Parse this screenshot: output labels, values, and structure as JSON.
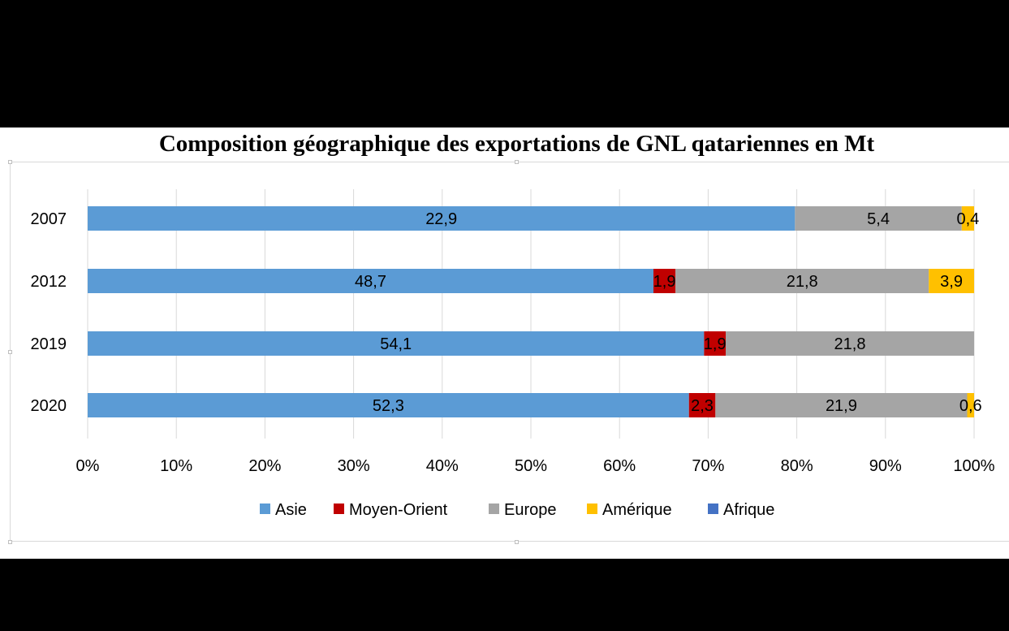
{
  "chart_data": {
    "type": "bar",
    "orientation": "horizontal",
    "stacked": "percent",
    "title": "Composition géographique des exportations de GNL qatariennes en Mt",
    "categories": [
      "2007",
      "2012",
      "2019",
      "2020"
    ],
    "series": [
      {
        "name": "Asie",
        "color": "#5b9bd5",
        "values": [
          22.9,
          48.7,
          54.1,
          52.3
        ],
        "labels": [
          "22,9",
          "48,7",
          "54,1",
          "52,3"
        ]
      },
      {
        "name": "Moyen-Orient",
        "color": "#c00000",
        "values": [
          0,
          1.9,
          1.9,
          2.3
        ],
        "labels": [
          "",
          "1,9",
          "1,9",
          "2,3"
        ]
      },
      {
        "name": "Europe",
        "color": "#a5a5a5",
        "values": [
          5.4,
          21.8,
          21.8,
          21.9
        ],
        "labels": [
          "5,4",
          "21,8",
          "21,8",
          "21,9"
        ]
      },
      {
        "name": "Amérique",
        "color": "#ffc000",
        "values": [
          0.4,
          3.9,
          0,
          0.6
        ],
        "labels": [
          "0,4",
          "3,9",
          "",
          "0,6"
        ]
      },
      {
        "name": "Afrique",
        "color": "#4472c4",
        "values": [
          0,
          0,
          0,
          0
        ],
        "labels": [
          "",
          "",
          "",
          ""
        ]
      }
    ],
    "x_ticks": [
      "0%",
      "10%",
      "20%",
      "30%",
      "40%",
      "50%",
      "60%",
      "70%",
      "80%",
      "90%",
      "100%"
    ],
    "xlim": [
      0,
      100
    ],
    "grid": true,
    "legend": "bottom"
  }
}
